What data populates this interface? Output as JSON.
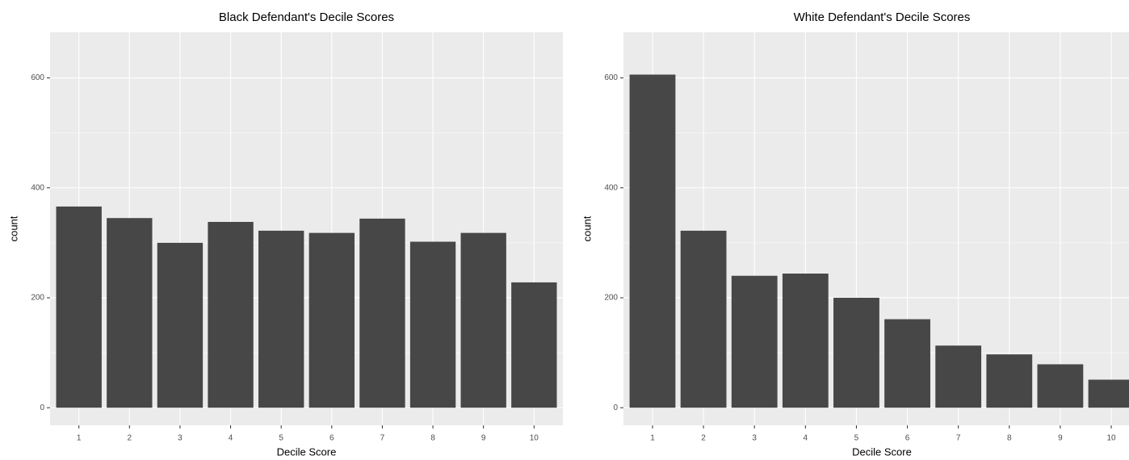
{
  "chart_data": [
    {
      "type": "bar",
      "title": "Black Defendant's Decile Scores",
      "x_label": "Decile Score",
      "y_label": "count",
      "categories": [
        "1",
        "2",
        "3",
        "4",
        "5",
        "6",
        "7",
        "8",
        "9",
        "10"
      ],
      "values": [
        366,
        345,
        300,
        338,
        322,
        318,
        344,
        302,
        318,
        228
      ],
      "color": "#474747",
      "ylim": [
        -32,
        683
      ],
      "yticks": [
        0,
        200,
        400,
        600
      ],
      "grid": true
    },
    {
      "type": "bar",
      "title": "White Defendant's Decile Scores",
      "x_label": "Decile Score",
      "y_label": "count",
      "categories": [
        "1",
        "2",
        "3",
        "4",
        "5",
        "6",
        "7",
        "8",
        "9",
        "10"
      ],
      "values": [
        606,
        322,
        240,
        244,
        200,
        161,
        113,
        97,
        79,
        51
      ],
      "color": "#474747",
      "ylim": [
        -32,
        683
      ],
      "yticks": [
        0,
        200,
        400,
        600
      ],
      "grid": true
    }
  ]
}
